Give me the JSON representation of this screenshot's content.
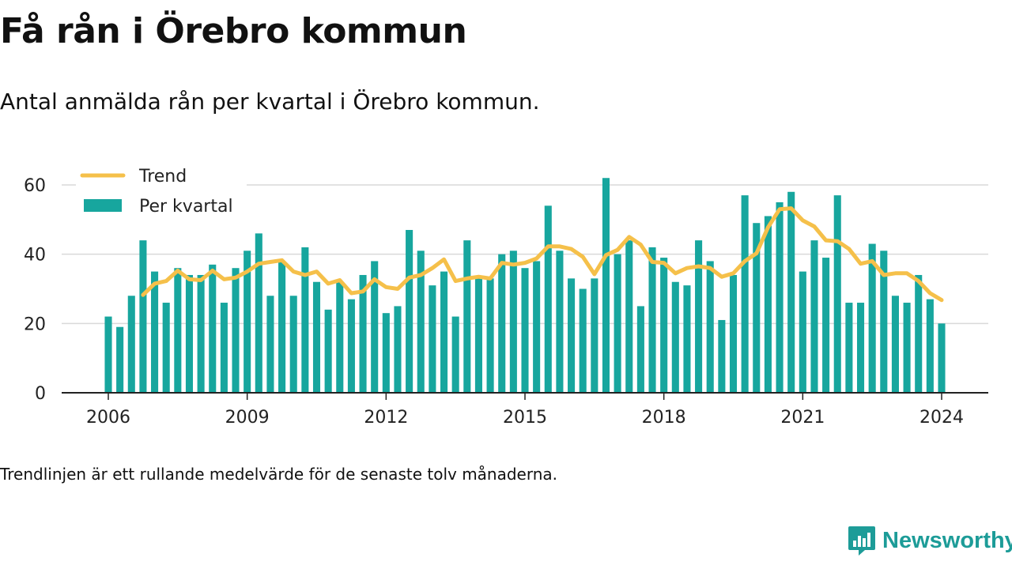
{
  "header": {
    "title": "Få rån i Örebro kommun",
    "subtitle": "Antal anmälda rån per kvartal i Örebro kommun."
  },
  "footer": {
    "note": "Trendlinjen är ett rullande medelvärde för de senaste tolv månaderna.",
    "brand": "Newsworthy"
  },
  "colors": {
    "bars": "#17a69e",
    "trend": "#f5c04a",
    "brand": "#1d9c98",
    "grid": "#d9d9d9",
    "axis": "#222222"
  },
  "chart_data": {
    "type": "bar",
    "x_start": 2006,
    "x_step": 0.25,
    "xticks": [
      "2006",
      "2009",
      "2012",
      "2015",
      "2018",
      "2021",
      "2024"
    ],
    "yticks": [
      "0",
      "20",
      "40",
      "60"
    ],
    "ylim": [
      0,
      65
    ],
    "grid": true,
    "legend_position": "top-left",
    "series": [
      {
        "name": "Per kvartal",
        "type": "bar",
        "values": [
          22,
          19,
          28,
          44,
          35,
          26,
          36,
          34,
          34,
          37,
          26,
          36,
          41,
          46,
          28,
          38,
          28,
          42,
          32,
          24,
          32,
          27,
          34,
          38,
          23,
          25,
          47,
          41,
          31,
          35,
          22,
          44,
          33,
          33,
          40,
          41,
          36,
          38,
          54,
          41,
          33,
          30,
          33,
          62,
          40,
          44,
          25,
          42,
          39,
          32,
          31,
          44,
          38,
          21,
          34,
          57,
          49,
          51,
          55,
          58,
          35,
          44,
          39,
          57,
          26,
          26,
          43,
          41,
          28,
          26,
          34,
          27,
          20
        ]
      },
      {
        "name": "Trend",
        "type": "line",
        "values": [
          null,
          null,
          null,
          28.25,
          31.5,
          32.25,
          35.25,
          32.75,
          32.5,
          35.25,
          32.75,
          33.25,
          35,
          37.25,
          37.75,
          38.25,
          35,
          34,
          35,
          31.5,
          32.5,
          28.75,
          29.25,
          32.75,
          30.5,
          30,
          33.25,
          34,
          36,
          38.5,
          32.25,
          33,
          33.5,
          33,
          37.5,
          37,
          37.5,
          38.75,
          42.25,
          42.25,
          41.5,
          39.25,
          34.25,
          39.75,
          41.25,
          45,
          42.75,
          37.75,
          37.5,
          34.5,
          36,
          36.5,
          36,
          33.5,
          34.5,
          38,
          40.25,
          47.75,
          53,
          53.25,
          49.75,
          48,
          44,
          43.75,
          41.5,
          37.25,
          38,
          34,
          34.5,
          34.5,
          32.25,
          28.75,
          26.75
        ]
      }
    ]
  }
}
